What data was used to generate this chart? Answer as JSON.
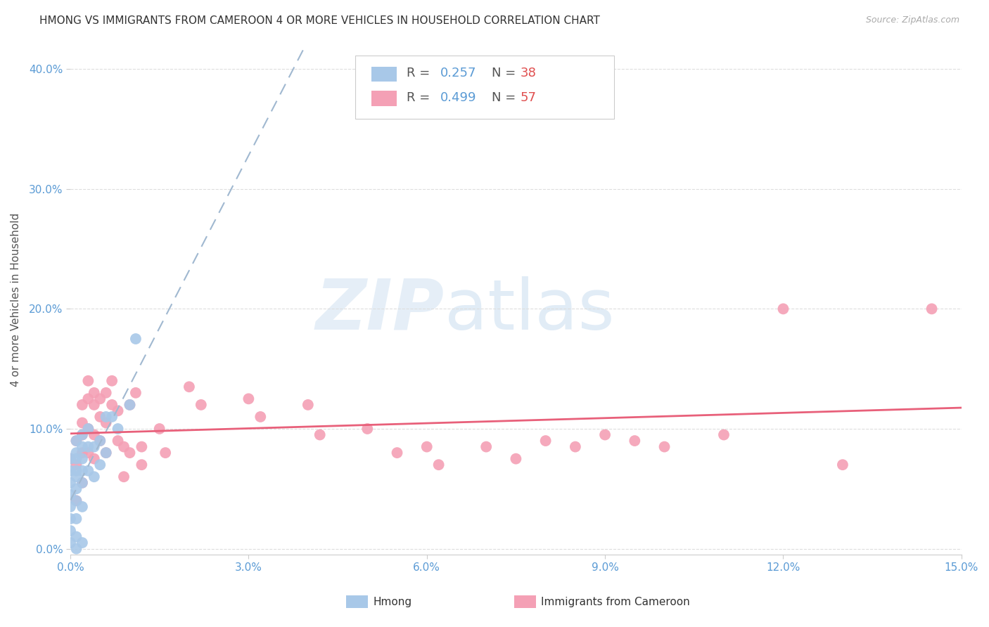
{
  "title": "HMONG VS IMMIGRANTS FROM CAMEROON 4 OR MORE VEHICLES IN HOUSEHOLD CORRELATION CHART",
  "source": "Source: ZipAtlas.com",
  "ylabel": "4 or more Vehicles in Household",
  "xlim": [
    0.0,
    0.15
  ],
  "ylim": [
    -0.005,
    0.42
  ],
  "xticks": [
    0.0,
    0.03,
    0.06,
    0.09,
    0.12,
    0.15
  ],
  "yticks": [
    0.0,
    0.1,
    0.2,
    0.3,
    0.4
  ],
  "hmong_color": "#a8c8e8",
  "cameroon_color": "#f4a0b5",
  "hmong_line_color": "#7aacdc",
  "cameroon_line_color": "#e8607a",
  "hmong_x": [
    0.0,
    0.0,
    0.0,
    0.0,
    0.0,
    0.0,
    0.0,
    0.0,
    0.001,
    0.001,
    0.001,
    0.001,
    0.001,
    0.001,
    0.001,
    0.001,
    0.001,
    0.001,
    0.002,
    0.002,
    0.002,
    0.002,
    0.002,
    0.002,
    0.002,
    0.003,
    0.003,
    0.003,
    0.004,
    0.004,
    0.005,
    0.005,
    0.006,
    0.006,
    0.007,
    0.008,
    0.01,
    0.011
  ],
  "hmong_y": [
    0.075,
    0.065,
    0.055,
    0.045,
    0.035,
    0.025,
    0.015,
    0.005,
    0.09,
    0.08,
    0.075,
    0.065,
    0.06,
    0.05,
    0.04,
    0.025,
    0.01,
    0.0,
    0.095,
    0.085,
    0.075,
    0.065,
    0.055,
    0.035,
    0.005,
    0.1,
    0.085,
    0.065,
    0.085,
    0.06,
    0.09,
    0.07,
    0.11,
    0.08,
    0.11,
    0.1,
    0.12,
    0.175
  ],
  "cameroon_x": [
    0.0,
    0.001,
    0.001,
    0.001,
    0.002,
    0.002,
    0.002,
    0.002,
    0.002,
    0.003,
    0.003,
    0.003,
    0.003,
    0.004,
    0.004,
    0.004,
    0.004,
    0.005,
    0.005,
    0.005,
    0.006,
    0.006,
    0.006,
    0.007,
    0.007,
    0.008,
    0.008,
    0.009,
    0.009,
    0.01,
    0.01,
    0.011,
    0.012,
    0.012,
    0.015,
    0.016,
    0.02,
    0.022,
    0.03,
    0.032,
    0.04,
    0.042,
    0.05,
    0.055,
    0.06,
    0.062,
    0.07,
    0.075,
    0.08,
    0.085,
    0.09,
    0.095,
    0.1,
    0.11,
    0.12,
    0.13,
    0.145
  ],
  "cameroon_y": [
    0.075,
    0.09,
    0.07,
    0.04,
    0.12,
    0.105,
    0.095,
    0.08,
    0.055,
    0.14,
    0.125,
    0.1,
    0.08,
    0.13,
    0.12,
    0.095,
    0.075,
    0.125,
    0.11,
    0.09,
    0.13,
    0.105,
    0.08,
    0.14,
    0.12,
    0.115,
    0.09,
    0.085,
    0.06,
    0.12,
    0.08,
    0.13,
    0.085,
    0.07,
    0.1,
    0.08,
    0.135,
    0.12,
    0.125,
    0.11,
    0.12,
    0.095,
    0.1,
    0.08,
    0.085,
    0.07,
    0.085,
    0.075,
    0.09,
    0.085,
    0.095,
    0.09,
    0.085,
    0.095,
    0.2,
    0.07,
    0.2
  ]
}
